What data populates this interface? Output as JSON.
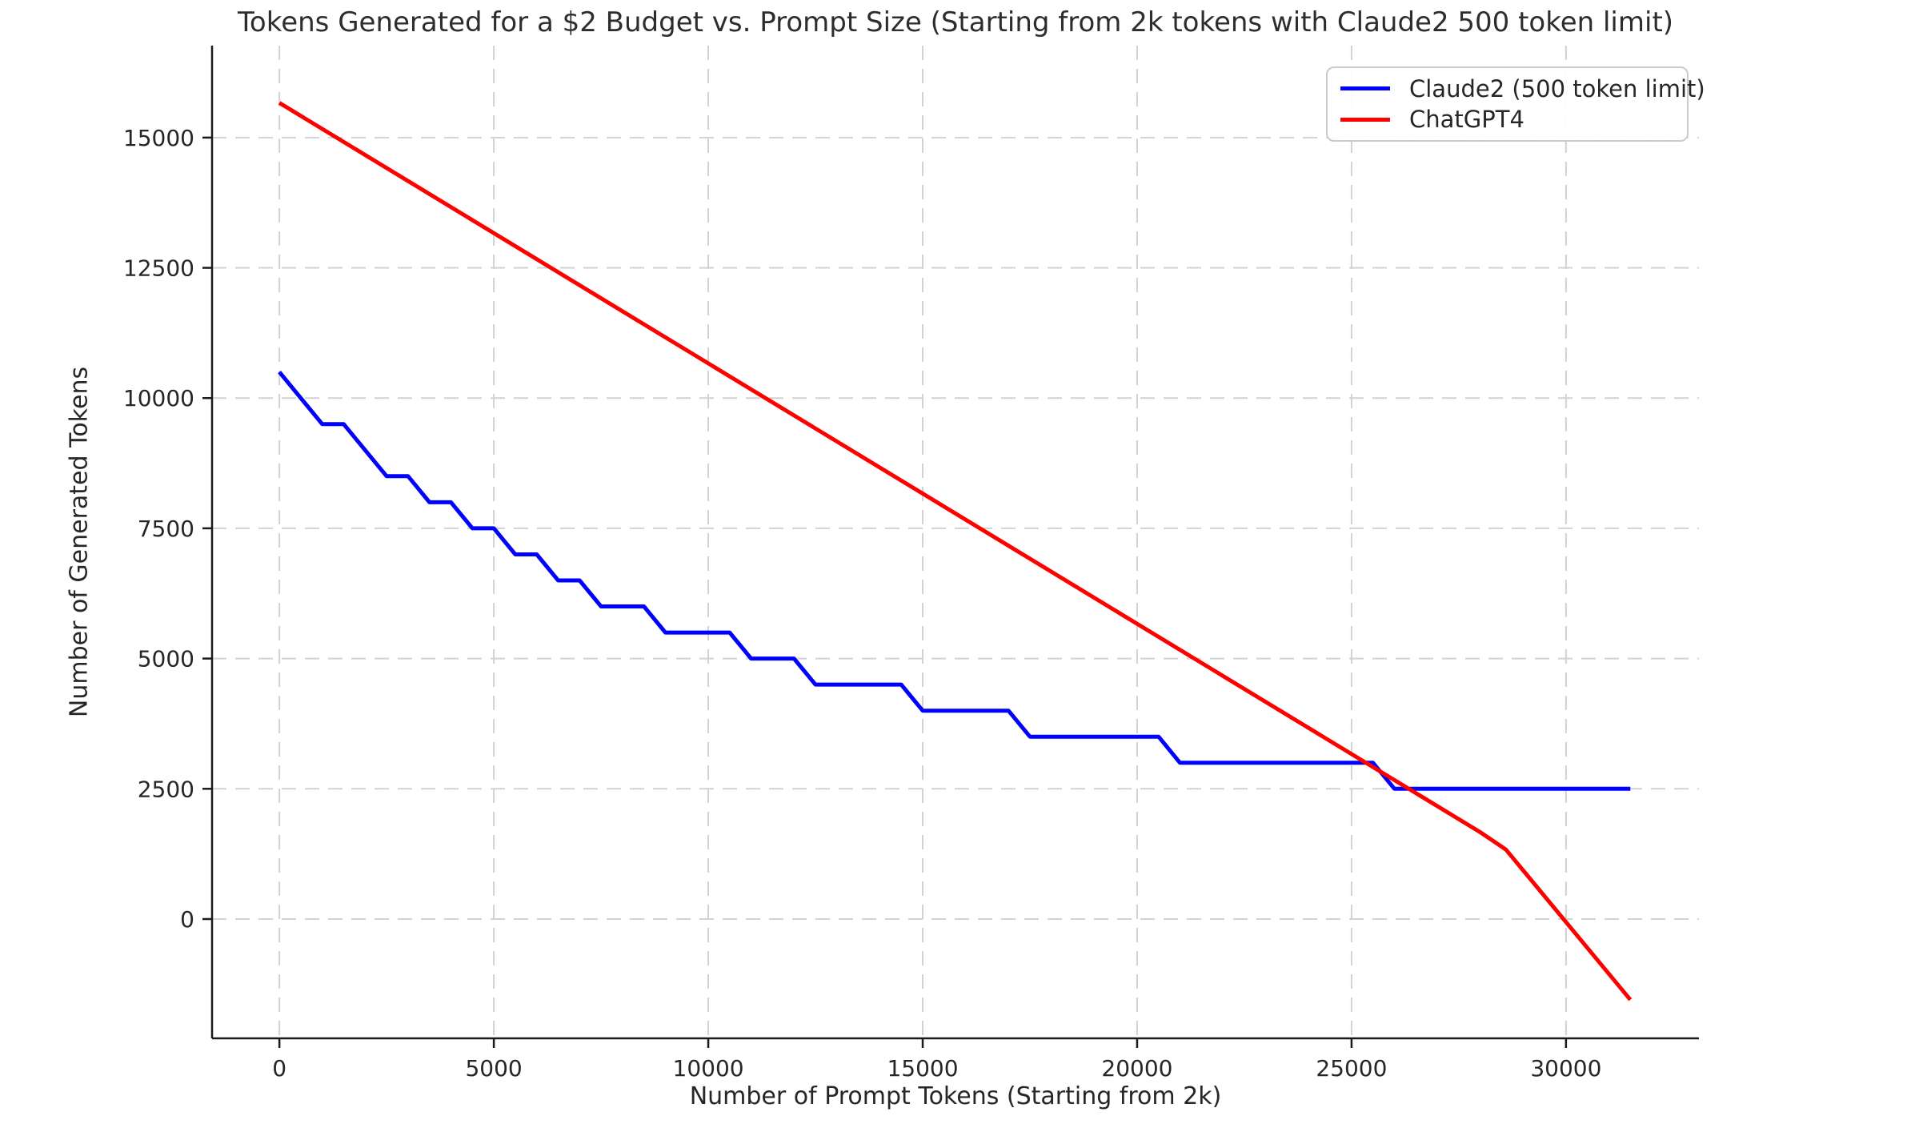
{
  "chart_data": {
    "type": "line",
    "title": "Tokens Generated for a $2 Budget vs. Prompt Size (Starting from 2k tokens with Claude2 500 token limit)",
    "xlabel": "Number of Prompt Tokens (Starting from 2k)",
    "ylabel": "Number of Generated Tokens",
    "x_range": [
      -1570,
      33100
    ],
    "y_range": [
      -2290,
      16765
    ],
    "x_ticks": [
      0,
      5000,
      10000,
      15000,
      20000,
      25000,
      30000
    ],
    "y_ticks": [
      0,
      2500,
      5000,
      7500,
      10000,
      12500,
      15000
    ],
    "grid": true,
    "grid_style": "dashed",
    "legend_position": "upper right",
    "series": [
      {
        "id": "claude2",
        "name": "Claude2 (500 token limit)",
        "color": "#0000ff",
        "points": [
          [
            0,
            10500
          ],
          [
            1000,
            9500
          ],
          [
            1500,
            9500
          ],
          [
            2500,
            8500
          ],
          [
            3000,
            8500
          ],
          [
            3500,
            8000
          ],
          [
            4000,
            8000
          ],
          [
            4500,
            7500
          ],
          [
            5000,
            7500
          ],
          [
            5500,
            7000
          ],
          [
            6000,
            7000
          ],
          [
            6500,
            6500
          ],
          [
            7000,
            6500
          ],
          [
            7500,
            6000
          ],
          [
            8500,
            6000
          ],
          [
            9000,
            5500
          ],
          [
            10500,
            5500
          ],
          [
            11000,
            5000
          ],
          [
            12000,
            5000
          ],
          [
            12500,
            4500
          ],
          [
            14500,
            4500
          ],
          [
            15000,
            4000
          ],
          [
            17000,
            4000
          ],
          [
            17500,
            3500
          ],
          [
            20500,
            3500
          ],
          [
            21000,
            3000
          ],
          [
            25500,
            3000
          ],
          [
            26000,
            2500
          ],
          [
            31500,
            2500
          ]
        ]
      },
      {
        "id": "chatgpt4",
        "name": "ChatGPT4",
        "color": "#ff0000",
        "points": [
          [
            0,
            15667
          ],
          [
            28000,
            1667
          ],
          [
            28600,
            1333
          ],
          [
            31500,
            -1550
          ]
        ]
      }
    ]
  },
  "colors": {
    "background": "#ffffff",
    "gridline": "#d2d2d2",
    "spine": "#1a1a1a",
    "text": "#262626"
  }
}
